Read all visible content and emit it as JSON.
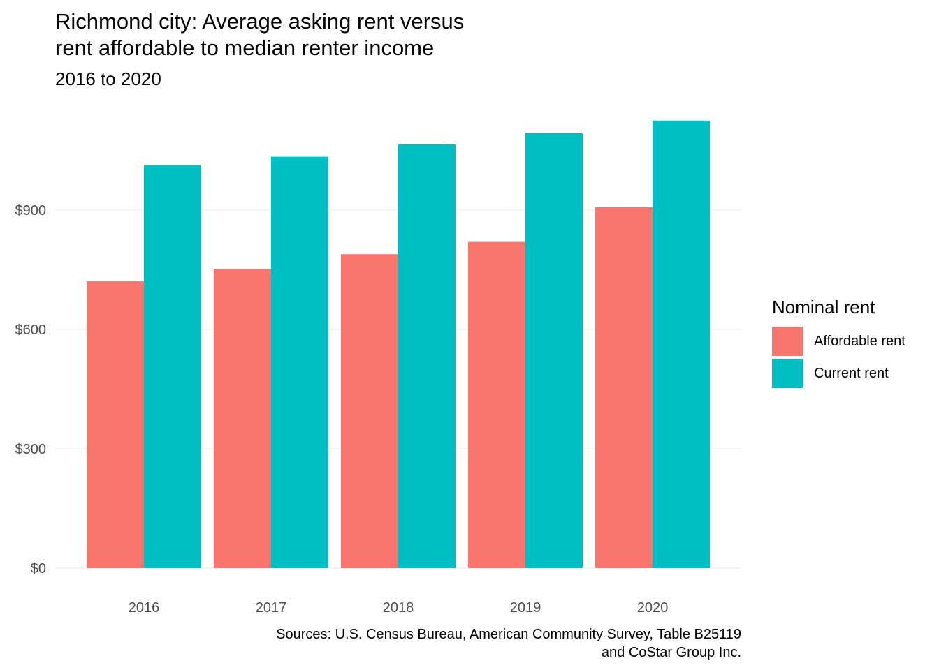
{
  "chart_data": {
    "type": "bar",
    "title": "Richmond city: Average asking rent versus\nrent affordable to median renter income",
    "subtitle": "2016 to 2020",
    "caption": "Sources: U.S. Census Bureau, American Community Survey, Table B25119\nand CoStar Group Inc.",
    "categories": [
      "2016",
      "2017",
      "2018",
      "2019",
      "2020"
    ],
    "series": [
      {
        "name": "Affordable rent",
        "color": "#F8766D",
        "values": [
          721,
          752,
          789,
          820,
          907
        ]
      },
      {
        "name": "Current rent",
        "color": "#00BFC4",
        "values": [
          1013,
          1034,
          1065,
          1093,
          1125
        ]
      }
    ],
    "legend": {
      "title": "Nominal rent",
      "position": "right"
    },
    "ylim": [
      0,
      1150
    ],
    "yticks": [
      0,
      300,
      600,
      900
    ],
    "ytick_labels": [
      "$0",
      "$300",
      "$600",
      "$900"
    ],
    "xlabel": "",
    "ylabel": "",
    "grid": true
  }
}
